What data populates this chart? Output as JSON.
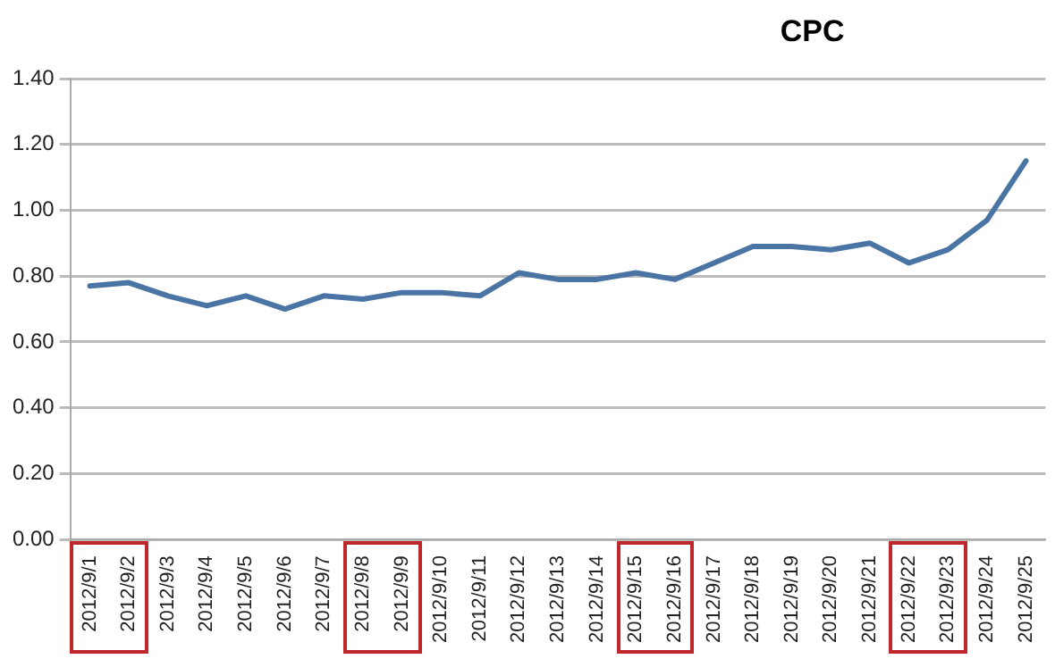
{
  "chart_data": {
    "type": "line",
    "title": "CPC",
    "categories": [
      "2012/9/1",
      "2012/9/2",
      "2012/9/3",
      "2012/9/4",
      "2012/9/5",
      "2012/9/6",
      "2012/9/7",
      "2012/9/8",
      "2012/9/9",
      "2012/9/10",
      "2012/9/11",
      "2012/9/12",
      "2012/9/13",
      "2012/9/14",
      "2012/9/15",
      "2012/9/16",
      "2012/9/17",
      "2012/9/18",
      "2012/9/19",
      "2012/9/20",
      "2012/9/21",
      "2012/9/22",
      "2012/9/23",
      "2012/9/24",
      "2012/9/25"
    ],
    "series": [
      {
        "color": "#4a74a4",
        "values": [
          0.77,
          0.78,
          0.74,
          0.71,
          0.74,
          0.7,
          0.74,
          0.73,
          0.75,
          0.75,
          0.74,
          0.81,
          0.79,
          0.79,
          0.81,
          0.79,
          0.84,
          0.89,
          0.89,
          0.88,
          0.9,
          0.84,
          0.88,
          0.97,
          1.15
        ]
      }
    ],
    "ylim": [
      0,
      1.4
    ],
    "yticks": [
      {
        "value": 0,
        "label": "0.00"
      },
      {
        "value": 0.2,
        "label": "0.20"
      },
      {
        "value": 0.4,
        "label": "0.40"
      },
      {
        "value": 0.6,
        "label": "0.60"
      },
      {
        "value": 0.8,
        "label": "0.80"
      },
      {
        "value": 1,
        "label": "1.00"
      },
      {
        "value": 1.2,
        "label": "1.20"
      },
      {
        "value": 1.4,
        "label": "1.40"
      }
    ],
    "grid": "y",
    "legend": false,
    "marker": "none",
    "line_style": "solid"
  }
}
